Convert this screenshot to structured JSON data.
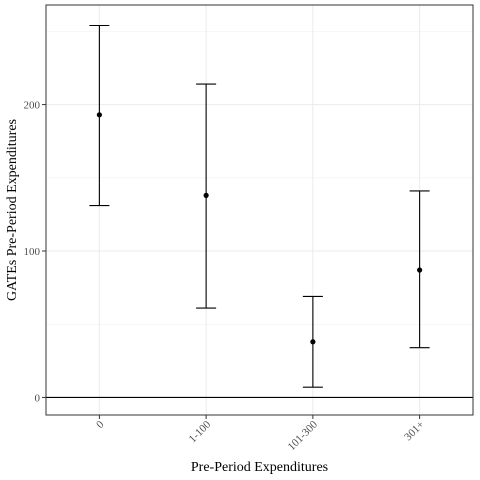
{
  "chart_data": {
    "type": "errorbar",
    "xlabel": "Pre-Period Expenditures",
    "ylabel": "GATEs Pre-Period Expenditures",
    "categories": [
      "0",
      "1-100",
      "101-300",
      "301+"
    ],
    "estimates": [
      193,
      138,
      38,
      87
    ],
    "ci_lower": [
      131,
      61,
      7,
      34
    ],
    "ci_upper": [
      254,
      214,
      69,
      141
    ],
    "yticks": [
      0,
      100,
      200
    ],
    "ylim": [
      -12,
      268
    ],
    "reference_line_y": 0,
    "grid": true,
    "x_tick_rotation_deg": -45
  }
}
